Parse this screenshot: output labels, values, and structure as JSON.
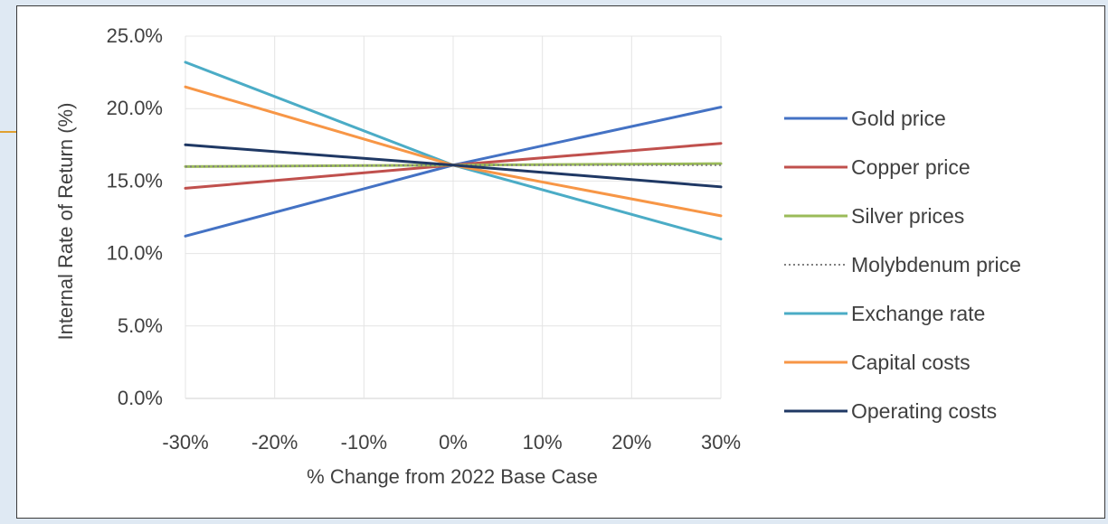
{
  "chart_data": {
    "type": "line",
    "x": [
      -30,
      0,
      30
    ],
    "x_tick_labels": [
      "-30%",
      "-20%",
      "-10%",
      "0%",
      "10%",
      "20%",
      "30%"
    ],
    "y_tick_labels": [
      "0.0%",
      "5.0%",
      "10.0%",
      "15.0%",
      "20.0%",
      "25.0%"
    ],
    "xlabel": "% Change from 2022 Base Case",
    "ylabel": "Internal Rate of Return (%)",
    "xlim": [
      -30,
      30
    ],
    "ylim": [
      0,
      25
    ],
    "grid": true,
    "legend_position": "right",
    "series": [
      {
        "name": "Gold price",
        "values": [
          11.2,
          16.1,
          20.1
        ],
        "color": "#4472c4",
        "dash": "solid"
      },
      {
        "name": "Copper price",
        "values": [
          14.5,
          16.1,
          17.6
        ],
        "color": "#c0504d",
        "dash": "solid"
      },
      {
        "name": "Silver prices",
        "values": [
          16.0,
          16.1,
          16.2
        ],
        "color": "#9bbb59",
        "dash": "solid"
      },
      {
        "name": "Molybdenum price",
        "values": [
          16.0,
          16.1,
          16.1
        ],
        "color": "#808080",
        "dash": "dotted"
      },
      {
        "name": "Exchange rate",
        "values": [
          23.2,
          16.1,
          11.0
        ],
        "color": "#4bacc6",
        "dash": "solid"
      },
      {
        "name": "Capital costs",
        "values": [
          21.5,
          16.1,
          12.6
        ],
        "color": "#f79646",
        "dash": "solid"
      },
      {
        "name": "Operating costs",
        "values": [
          17.5,
          16.1,
          14.6
        ],
        "color": "#1f3864",
        "dash": "solid"
      }
    ]
  }
}
